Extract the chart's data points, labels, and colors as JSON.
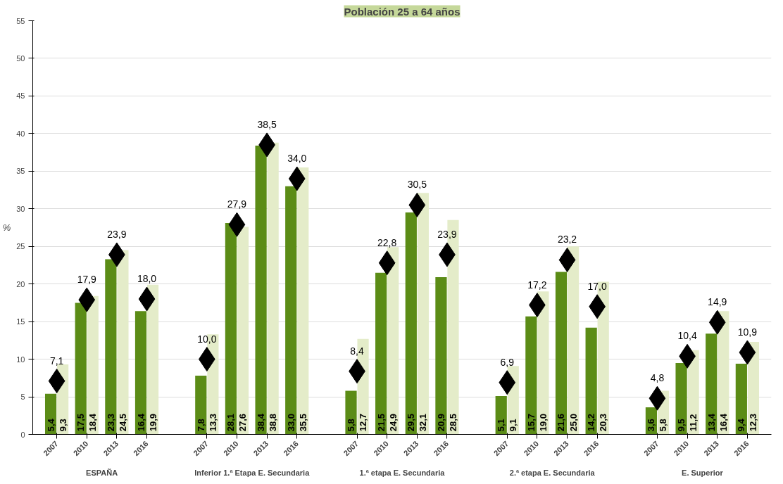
{
  "chart_data": {
    "type": "bar",
    "title": "Población 25 a 64 años",
    "ylabel": "%",
    "categories": [
      "2007",
      "2010",
      "2013",
      "2016",
      null,
      "2007",
      "2010",
      "2013",
      "2016",
      null,
      "2007",
      "2010",
      "2013",
      "2016",
      null,
      "2007",
      "2010",
      "2013",
      "2016",
      null,
      "2007",
      "2010",
      "2013",
      "2016"
    ],
    "series": [
      {
        "color": "#5b8c16",
        "values": [
          5.4,
          17.5,
          23.3,
          16.4,
          null,
          7.8,
          28.1,
          38.4,
          33.0,
          null,
          5.8,
          21.5,
          29.5,
          20.9,
          null,
          5.1,
          15.7,
          21.6,
          14.2,
          null,
          3.6,
          9.5,
          13.4,
          9.4
        ],
        "value_labels": [
          "5,4",
          "17,5",
          "23,3",
          "16,4",
          null,
          "7,8",
          "28,1",
          "38,4",
          "33,0",
          null,
          "5,8",
          "21,5",
          "29,5",
          "20,9",
          null,
          "5,1",
          "15,7",
          "21,6",
          "14,2",
          null,
          "3,6",
          "9,5",
          "13,4",
          "9,4"
        ]
      },
      {
        "color": "#e4ecc9",
        "values": [
          9.3,
          18.4,
          24.5,
          19.9,
          null,
          13.3,
          27.6,
          38.8,
          35.5,
          null,
          12.7,
          24.9,
          32.1,
          28.5,
          null,
          9.1,
          19.0,
          25.0,
          20.3,
          null,
          5.8,
          11.2,
          16.4,
          12.3
        ],
        "value_labels": [
          "9,3",
          "18,4",
          "24,5",
          "19,9",
          null,
          "13,3",
          "27,6",
          "38,8",
          "35,5",
          null,
          "12,7",
          "24,9",
          "32,1",
          "28,5",
          null,
          "9,1",
          "19,0",
          "25,0",
          "20,3",
          null,
          "5,8",
          "11,2",
          "16,4",
          "12,3"
        ]
      },
      {
        "type": "scatter",
        "marker": "diamond",
        "color": "#000000",
        "values": [
          7.1,
          17.9,
          23.9,
          18.0,
          null,
          10.0,
          27.9,
          38.5,
          34.0,
          null,
          8.4,
          22.8,
          30.5,
          23.9,
          null,
          6.9,
          17.2,
          23.2,
          17.0,
          null,
          4.8,
          10.4,
          14.9,
          10.9
        ],
        "value_labels": [
          "7,1",
          "17,9",
          "23,9",
          "18,0",
          null,
          "10,0",
          "27,9",
          "38,5",
          "34,0",
          null,
          "8,4",
          "22,8",
          "30,5",
          "23,9",
          null,
          "6,9",
          "17,2",
          "23,2",
          "17,0",
          null,
          "4,8",
          "10,4",
          "14,9",
          "10,9"
        ]
      }
    ],
    "annotations": [
      "ESPAÑA",
      "Inferior 1.ª Etapa E. Secundaria",
      "1.ª etapa E. Secundaria",
      "2.ª etapa E. Secundaria",
      "E. Superior"
    ],
    "ylim": [
      0,
      55
    ],
    "yticks": [
      0,
      5,
      10,
      15,
      20,
      25,
      30,
      35,
      40,
      45,
      50,
      55
    ],
    "grid": "y"
  }
}
